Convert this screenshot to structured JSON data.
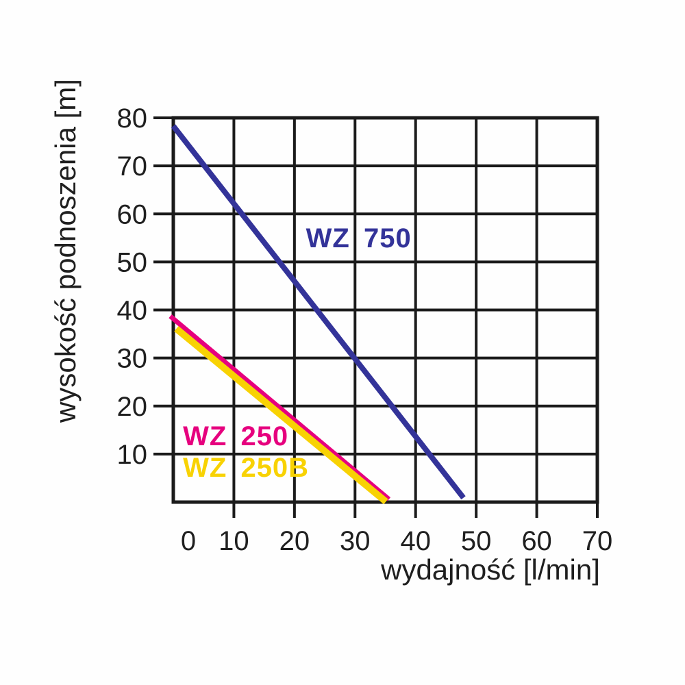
{
  "page": {
    "background": "#fefefe"
  },
  "chart_data": {
    "type": "line",
    "title": "",
    "xlabel": "wydajność [l/min]",
    "ylabel": "wysokość podnoszenia [m]",
    "xlim": [
      0,
      70
    ],
    "ylim": [
      0,
      80
    ],
    "xgridlines": [
      0,
      10,
      20,
      30,
      40,
      50,
      60,
      70
    ],
    "ygridlines": [
      0,
      10,
      20,
      30,
      40,
      50,
      60,
      70,
      80
    ],
    "xtick_labels": [
      0,
      10,
      20,
      30,
      40,
      50,
      60,
      70
    ],
    "xtick_marks": [
      10,
      20,
      30,
      40,
      50,
      60,
      70
    ],
    "ytick_labels": [
      10,
      20,
      30,
      40,
      50,
      60,
      70,
      80
    ],
    "ytick_marks": [
      10,
      20,
      30,
      40,
      50,
      60,
      70,
      80
    ],
    "grid": true,
    "legend_position": "inline-labels",
    "axis_color": "#1b1b1b",
    "grid_color": "#1b1b1b",
    "text_color": "#1f1f1f",
    "series": [
      {
        "name": "WZ 750",
        "color": "#333399",
        "line_width": 8,
        "points": [
          [
            0,
            78.3
          ],
          [
            47.9,
            0.9
          ]
        ],
        "label": {
          "text": "WZ 750",
          "x": 21.9,
          "y": 55.2
        }
      },
      {
        "name": "WZ 250",
        "color": "#E6007E",
        "line_width": 7,
        "points": [
          [
            -0.5,
            38.7
          ],
          [
            35.6,
            0.6
          ]
        ],
        "label": {
          "text": "WZ 250",
          "x": 1.6,
          "y": 14.0
        }
      },
      {
        "name": "WZ 250B",
        "color": "#F8D203",
        "line_width": 10,
        "points": [
          [
            0.5,
            36.1
          ],
          [
            35.1,
            0.1
          ]
        ],
        "label": {
          "text": "WZ 250B",
          "x": 1.6,
          "y": 7.4
        }
      }
    ]
  }
}
